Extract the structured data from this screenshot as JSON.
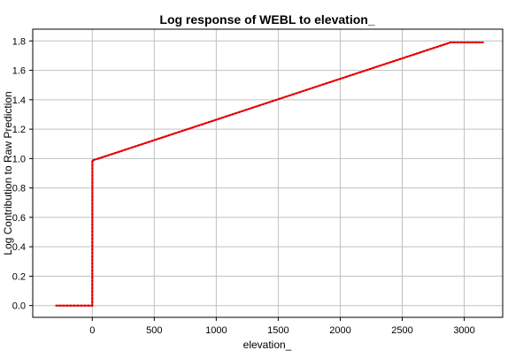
{
  "chart_data": {
    "type": "line",
    "title": "Log response of WEBL to elevation_",
    "xlabel": "elevation_",
    "ylabel": "Log Contribution to Raw Prediction",
    "xlim": [
      -480,
      3310
    ],
    "ylim": [
      -0.08,
      1.88
    ],
    "xticks": [
      0,
      500,
      1000,
      1500,
      2000,
      2500,
      3000
    ],
    "yticks": [
      0.0,
      0.2,
      0.4,
      0.6,
      0.8,
      1.0,
      1.2,
      1.4,
      1.6,
      1.8
    ],
    "ytick_labels": [
      "0.0",
      "0.2",
      "0.4",
      "0.6",
      "0.8",
      "1.0",
      "1.2",
      "1.4",
      "1.6",
      "1.8"
    ],
    "grid": true,
    "series": [
      {
        "color": "#ff0000",
        "marker_color": "#cc0000",
        "x": [
          -290,
          0,
          1,
          10,
          50,
          2890,
          3150
        ],
        "y": [
          0.0,
          0.0,
          0.98,
          0.99,
          1.0,
          1.79,
          1.79
        ]
      }
    ]
  }
}
